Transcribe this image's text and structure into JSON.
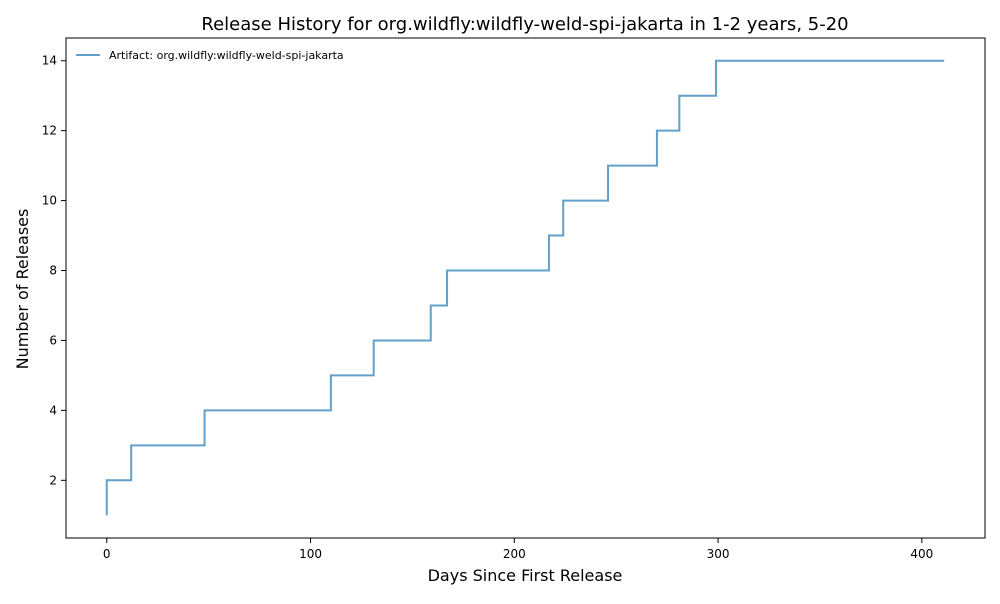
{
  "chart_data": {
    "type": "line",
    "step": "post",
    "title": "Release History for org.wildfly:wildfly-weld-spi-jakarta in 1-2 years, 5-20",
    "xlabel": "Days Since First Release",
    "ylabel": "Number of Releases",
    "xlim": [
      -20,
      431
    ],
    "ylim": [
      0.35,
      14.65
    ],
    "xticks": [
      0,
      100,
      200,
      300,
      400
    ],
    "yticks": [
      2,
      4,
      6,
      8,
      10,
      12,
      14
    ],
    "grid": false,
    "legend_position": "top-left",
    "series": [
      {
        "name": "Artifact: org.wildfly:wildfly-weld-spi-jakarta",
        "color": "#1f77b4",
        "x": [
          0,
          0,
          12,
          48,
          110,
          131,
          159,
          167,
          217,
          224,
          246,
          270,
          281,
          299,
          411
        ],
        "y": [
          1,
          2,
          3,
          4,
          5,
          6,
          7,
          8,
          9,
          10,
          11,
          12,
          13,
          14,
          14
        ]
      }
    ]
  }
}
